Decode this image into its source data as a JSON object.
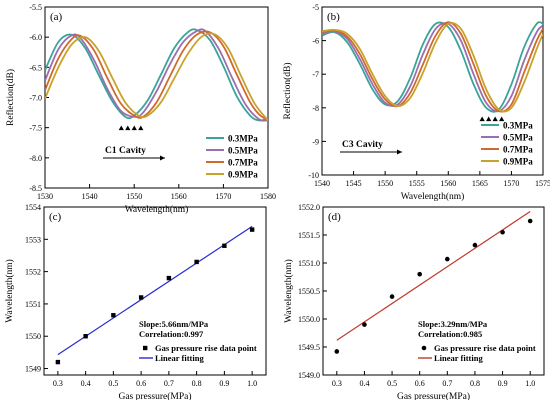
{
  "chart_data": [
    {
      "panel": "(a)",
      "type": "line",
      "xlabel": "Wavelength(nm)",
      "ylabel": "Reflection(dB)",
      "xlim": [
        1530,
        1580
      ],
      "ylim": [
        -8.5,
        -5.5
      ],
      "xticks": [
        1530,
        1540,
        1550,
        1560,
        1570,
        1580
      ],
      "yticks": [
        -8.5,
        -8.0,
        -7.5,
        -7.0,
        -6.5,
        -6.0,
        -5.5
      ],
      "ytick_labels": [
        "-8.5",
        "-8.0",
        "-7.5",
        "-7.0",
        "-6.5",
        "-6.0",
        "-5.5"
      ],
      "annotation": "C1 Cavity",
      "legend_position": "bottom-right",
      "series": [
        {
          "name": "0.3MPa",
          "color": "#3aa39a",
          "points": [
            [
              1530,
              -6.55
            ],
            [
              1533,
              -6.08
            ],
            [
              1536,
              -5.96
            ],
            [
              1539,
              -6.18
            ],
            [
              1542,
              -6.62
            ],
            [
              1545,
              -7.05
            ],
            [
              1548,
              -7.32
            ],
            [
              1550,
              -7.3
            ],
            [
              1553,
              -7.05
            ],
            [
              1556,
              -6.62
            ],
            [
              1559,
              -6.18
            ],
            [
              1562,
              -5.92
            ],
            [
              1564,
              -5.88
            ],
            [
              1567,
              -6.05
            ],
            [
              1570,
              -6.48
            ],
            [
              1573,
              -6.98
            ],
            [
              1576,
              -7.3
            ],
            [
              1578,
              -7.38
            ],
            [
              1580,
              -7.35
            ]
          ]
        },
        {
          "name": "0.5MPa",
          "color": "#9a6fb0",
          "points": [
            [
              1530,
              -6.72
            ],
            [
              1533,
              -6.2
            ],
            [
              1536,
              -5.97
            ],
            [
              1538,
              -6.02
            ],
            [
              1541,
              -6.38
            ],
            [
              1544,
              -6.86
            ],
            [
              1547,
              -7.22
            ],
            [
              1550,
              -7.32
            ],
            [
              1552,
              -7.25
            ],
            [
              1555,
              -6.9
            ],
            [
              1558,
              -6.45
            ],
            [
              1561,
              -6.08
            ],
            [
              1564,
              -5.9
            ],
            [
              1566,
              -5.9
            ],
            [
              1569,
              -6.2
            ],
            [
              1572,
              -6.68
            ],
            [
              1575,
              -7.12
            ],
            [
              1578,
              -7.36
            ],
            [
              1580,
              -7.38
            ]
          ]
        },
        {
          "name": "0.7MPa",
          "color": "#d06a2c",
          "points": [
            [
              1530,
              -6.88
            ],
            [
              1533,
              -6.35
            ],
            [
              1536,
              -6.03
            ],
            [
              1538,
              -5.98
            ],
            [
              1541,
              -6.22
            ],
            [
              1544,
              -6.68
            ],
            [
              1547,
              -7.1
            ],
            [
              1550,
              -7.3
            ],
            [
              1552,
              -7.32
            ],
            [
              1555,
              -7.08
            ],
            [
              1558,
              -6.65
            ],
            [
              1561,
              -6.22
            ],
            [
              1564,
              -5.96
            ],
            [
              1567,
              -5.92
            ],
            [
              1570,
              -6.15
            ],
            [
              1573,
              -6.62
            ],
            [
              1576,
              -7.08
            ],
            [
              1578,
              -7.28
            ],
            [
              1580,
              -7.38
            ]
          ]
        },
        {
          "name": "0.9MPa",
          "color": "#c9a22a",
          "points": [
            [
              1530,
              -7.02
            ],
            [
              1533,
              -6.5
            ],
            [
              1536,
              -6.12
            ],
            [
              1539,
              -6.0
            ],
            [
              1542,
              -6.22
            ],
            [
              1545,
              -6.66
            ],
            [
              1548,
              -7.08
            ],
            [
              1551,
              -7.3
            ],
            [
              1553,
              -7.3
            ],
            [
              1556,
              -7.08
            ],
            [
              1559,
              -6.68
            ],
            [
              1562,
              -6.28
            ],
            [
              1565,
              -6.0
            ],
            [
              1568,
              -5.95
            ],
            [
              1571,
              -6.18
            ],
            [
              1574,
              -6.65
            ],
            [
              1577,
              -7.1
            ],
            [
              1580,
              -7.38
            ]
          ]
        }
      ]
    },
    {
      "panel": "(b)",
      "type": "line",
      "xlabel": "Wavelength(nm)",
      "ylabel": "Reflection(dB)",
      "xlim": [
        1540,
        1575
      ],
      "ylim": [
        -10,
        -5
      ],
      "xticks": [
        1540,
        1545,
        1550,
        1555,
        1560,
        1565,
        1570,
        1575
      ],
      "yticks": [
        -10,
        -9,
        -8,
        -7,
        -6,
        -5
      ],
      "ytick_labels": [
        "-10",
        "-9",
        "-8",
        "-7",
        "-6",
        "-5"
      ],
      "annotation": "C3 Cavity",
      "legend_position": "bottom-right",
      "series": [
        {
          "name": "0.3MPa",
          "color": "#3aa39a",
          "points": [
            [
              1540,
              -5.85
            ],
            [
              1542,
              -5.75
            ],
            [
              1544,
              -6.05
            ],
            [
              1546,
              -6.7
            ],
            [
              1548,
              -7.45
            ],
            [
              1550,
              -7.9
            ],
            [
              1552,
              -7.8
            ],
            [
              1554,
              -7.1
            ],
            [
              1556,
              -6.1
            ],
            [
              1558,
              -5.5
            ],
            [
              1560,
              -5.6
            ],
            [
              1562,
              -6.3
            ],
            [
              1564,
              -7.3
            ],
            [
              1566,
              -8.0
            ],
            [
              1568,
              -8.05
            ],
            [
              1570,
              -7.3
            ],
            [
              1572,
              -6.2
            ],
            [
              1574,
              -5.5
            ],
            [
              1575,
              -5.5
            ]
          ]
        },
        {
          "name": "0.5MPa",
          "color": "#9a6fb0",
          "points": [
            [
              1540,
              -5.8
            ],
            [
              1542,
              -5.72
            ],
            [
              1544,
              -5.95
            ],
            [
              1546,
              -6.55
            ],
            [
              1548,
              -7.3
            ],
            [
              1550,
              -7.85
            ],
            [
              1552,
              -7.9
            ],
            [
              1554,
              -7.35
            ],
            [
              1556,
              -6.4
            ],
            [
              1558,
              -5.65
            ],
            [
              1560,
              -5.5
            ],
            [
              1562,
              -6.0
            ],
            [
              1564,
              -7.0
            ],
            [
              1566,
              -7.85
            ],
            [
              1568,
              -8.1
            ],
            [
              1570,
              -7.65
            ],
            [
              1572,
              -6.6
            ],
            [
              1574,
              -5.75
            ],
            [
              1575,
              -5.55
            ]
          ]
        },
        {
          "name": "0.7MPa",
          "color": "#d06a2c",
          "points": [
            [
              1540,
              -5.75
            ],
            [
              1542,
              -5.7
            ],
            [
              1544,
              -5.88
            ],
            [
              1546,
              -6.4
            ],
            [
              1548,
              -7.15
            ],
            [
              1550,
              -7.75
            ],
            [
              1552,
              -7.95
            ],
            [
              1554,
              -7.55
            ],
            [
              1556,
              -6.7
            ],
            [
              1558,
              -5.85
            ],
            [
              1560,
              -5.45
            ],
            [
              1562,
              -5.8
            ],
            [
              1564,
              -6.7
            ],
            [
              1566,
              -7.65
            ],
            [
              1568,
              -8.1
            ],
            [
              1570,
              -7.9
            ],
            [
              1572,
              -6.95
            ],
            [
              1574,
              -6.0
            ],
            [
              1575,
              -5.65
            ]
          ]
        },
        {
          "name": "0.9MPa",
          "color": "#c9a22a",
          "points": [
            [
              1540,
              -5.72
            ],
            [
              1542,
              -5.68
            ],
            [
              1544,
              -5.8
            ],
            [
              1546,
              -6.25
            ],
            [
              1548,
              -7.0
            ],
            [
              1550,
              -7.65
            ],
            [
              1552,
              -7.95
            ],
            [
              1554,
              -7.7
            ],
            [
              1556,
              -6.95
            ],
            [
              1558,
              -6.05
            ],
            [
              1560,
              -5.5
            ],
            [
              1562,
              -5.65
            ],
            [
              1564,
              -6.45
            ],
            [
              1566,
              -7.45
            ],
            [
              1568,
              -8.05
            ],
            [
              1570,
              -8.0
            ],
            [
              1572,
              -7.25
            ],
            [
              1574,
              -6.25
            ],
            [
              1575,
              -5.8
            ]
          ]
        }
      ]
    },
    {
      "panel": "(c)",
      "type": "scatter",
      "xlabel": "Gas pressure(MPa)",
      "ylabel": "Wavelength(nm)",
      "xlim": [
        0.25,
        1.05
      ],
      "ylim": [
        1548.8,
        1554
      ],
      "xticks": [
        0.3,
        0.4,
        0.5,
        0.6,
        0.7,
        0.8,
        0.9,
        1.0
      ],
      "yticks": [
        1549,
        1550,
        1551,
        1552,
        1553,
        1554
      ],
      "fit_color": "#2a2ad0",
      "annotations": [
        "Slope:5.66nm/MPa",
        "Correlation:0.997"
      ],
      "legend": [
        "Gas pressure rise data point",
        "Linear fitting"
      ],
      "legend_position": "bottom-right",
      "series": [
        {
          "name": "Gas pressure rise data point",
          "x": [
            0.3,
            0.4,
            0.5,
            0.6,
            0.7,
            0.8,
            0.9,
            1.0
          ],
          "y": [
            1549.2,
            1550.0,
            1550.65,
            1551.2,
            1551.8,
            1552.3,
            1552.8,
            1553.3
          ]
        },
        {
          "name": "Linear fitting",
          "x": [
            0.3,
            1.0
          ],
          "y": [
            1549.43,
            1553.4
          ]
        }
      ]
    },
    {
      "panel": "(d)",
      "type": "scatter",
      "xlabel": "Gas pressure(MPa)",
      "ylabel": "Wavelength(nm)",
      "xlim": [
        0.25,
        1.05
      ],
      "ylim": [
        1549,
        1552
      ],
      "xticks": [
        0.3,
        0.4,
        0.5,
        0.6,
        0.7,
        0.8,
        0.9,
        1.0
      ],
      "yticks": [
        1549.0,
        1549.5,
        1550.0,
        1550.5,
        1551.0,
        1551.5,
        1552.0
      ],
      "fit_color": "#c0392b",
      "annotations": [
        "Slope:3.29nm/MPa",
        "Correlation:0.985"
      ],
      "legend": [
        "Gas pressure rise data point",
        "Linear fitting"
      ],
      "legend_position": "bottom-right",
      "series": [
        {
          "name": "Gas pressure rise data point",
          "x": [
            0.3,
            0.4,
            0.5,
            0.6,
            0.7,
            0.8,
            0.9,
            1.0
          ],
          "y": [
            1549.42,
            1549.9,
            1550.4,
            1550.8,
            1551.07,
            1551.32,
            1551.55,
            1551.75
          ]
        },
        {
          "name": "Linear fitting",
          "x": [
            0.3,
            1.0
          ],
          "y": [
            1549.62,
            1551.92
          ]
        }
      ]
    }
  ]
}
